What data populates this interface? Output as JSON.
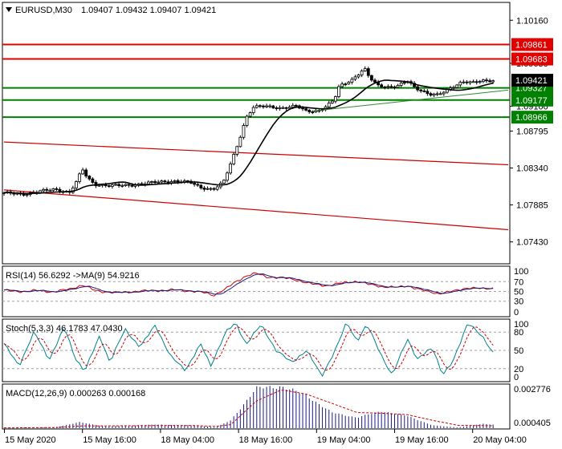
{
  "chart_data": {
    "type": "candlestick",
    "symbol_label": "EURUSD,M30",
    "ohlc_text": "1.09407 1.09432 1.09407 1.09421",
    "price_ticks": [
      "1.10160",
      "1.09630",
      "1.09100",
      "1.08795",
      "1.08340",
      "1.07885",
      "1.07430"
    ],
    "ylim": [
      1.0717,
      1.1037
    ],
    "current_price": "1.09421",
    "x_labels": [
      "15 May 2020",
      "15 May 16:00",
      "18 May 04:00",
      "18 May 16:00",
      "19 May 04:00",
      "19 May 16:00",
      "20 May 04:00"
    ],
    "levels": [
      {
        "label": "1.09861",
        "value": 1.09861,
        "color": "#e00000"
      },
      {
        "label": "1.09683",
        "value": 1.09683,
        "color": "#e00000"
      },
      {
        "label": "1.09327",
        "value": 1.09327,
        "color": "#008000"
      },
      {
        "label": "1.09177",
        "value": 1.09177,
        "color": "#008000"
      },
      {
        "label": "1.08966",
        "value": 1.08966,
        "color": "#008000"
      }
    ],
    "channel": {
      "color": "#cc0000",
      "upper": [
        [
          0,
          1.0866
        ],
        [
          1,
          1.0838
        ]
      ],
      "lower": [
        [
          0,
          1.0807
        ],
        [
          1,
          1.0758
        ]
      ]
    },
    "trend_line": {
      "color": "#2e8b2e",
      "points": [
        [
          0.61,
          1.0904
        ],
        [
          1,
          1.093
        ]
      ]
    },
    "ma_color": "#000000",
    "keypoints": [
      [
        0,
        1.0803
      ],
      [
        0.04,
        1.0802
      ],
      [
        0.07,
        1.0805
      ],
      [
        0.1,
        1.0808
      ],
      [
        0.13,
        1.0804
      ],
      [
        0.145,
        1.0818
      ],
      [
        0.155,
        1.0833
      ],
      [
        0.165,
        1.0822
      ],
      [
        0.18,
        1.0814
      ],
      [
        0.21,
        1.0812
      ],
      [
        0.25,
        1.0813
      ],
      [
        0.28,
        1.0815
      ],
      [
        0.31,
        1.0817
      ],
      [
        0.34,
        1.0818
      ],
      [
        0.37,
        1.0816
      ],
      [
        0.39,
        1.081
      ],
      [
        0.415,
        1.0808
      ],
      [
        0.435,
        1.0816
      ],
      [
        0.45,
        1.084
      ],
      [
        0.465,
        1.0866
      ],
      [
        0.48,
        1.0896
      ],
      [
        0.495,
        1.0909
      ],
      [
        0.52,
        1.091
      ],
      [
        0.55,
        1.0908
      ],
      [
        0.58,
        1.091
      ],
      [
        0.6,
        1.0904
      ],
      [
        0.625,
        1.0905
      ],
      [
        0.64,
        1.091
      ],
      [
        0.655,
        1.0918
      ],
      [
        0.665,
        1.0935
      ],
      [
        0.675,
        1.0938
      ],
      [
        0.69,
        1.0943
      ],
      [
        0.705,
        1.0951
      ],
      [
        0.715,
        1.0956
      ],
      [
        0.725,
        1.0945
      ],
      [
        0.74,
        1.0936
      ],
      [
        0.76,
        1.0934
      ],
      [
        0.78,
        1.0935
      ],
      [
        0.8,
        1.0941
      ],
      [
        0.815,
        1.0933
      ],
      [
        0.83,
        1.0929
      ],
      [
        0.845,
        1.0925
      ],
      [
        0.86,
        1.0924
      ],
      [
        0.875,
        1.0928
      ],
      [
        0.89,
        1.0934
      ],
      [
        0.91,
        1.0941
      ],
      [
        0.93,
        1.0939
      ],
      [
        0.95,
        1.0941
      ],
      [
        0.97,
        1.0942
      ]
    ],
    "rsi": {
      "label": "RSI(14) 56.6292  ->MA(9) 54.9216",
      "ticks": [
        "100",
        "70",
        "50",
        "30",
        "0"
      ],
      "ylim": [
        0,
        100
      ],
      "levels": [
        70,
        50,
        30
      ],
      "series_colors": {
        "main": "#cc0000",
        "signal": "#1a1a80"
      },
      "keypoints": [
        [
          0,
          52
        ],
        [
          0.04,
          50
        ],
        [
          0.07,
          52
        ],
        [
          0.1,
          49
        ],
        [
          0.13,
          55
        ],
        [
          0.155,
          63
        ],
        [
          0.18,
          52
        ],
        [
          0.22,
          47
        ],
        [
          0.26,
          50
        ],
        [
          0.3,
          52
        ],
        [
          0.34,
          53
        ],
        [
          0.37,
          51
        ],
        [
          0.4,
          47
        ],
        [
          0.415,
          42
        ],
        [
          0.44,
          55
        ],
        [
          0.46,
          70
        ],
        [
          0.48,
          82
        ],
        [
          0.5,
          87
        ],
        [
          0.52,
          80
        ],
        [
          0.55,
          78
        ],
        [
          0.58,
          74
        ],
        [
          0.61,
          65
        ],
        [
          0.64,
          62
        ],
        [
          0.67,
          67
        ],
        [
          0.7,
          71
        ],
        [
          0.72,
          65
        ],
        [
          0.75,
          60
        ],
        [
          0.78,
          58
        ],
        [
          0.8,
          62
        ],
        [
          0.83,
          52
        ],
        [
          0.86,
          46
        ],
        [
          0.89,
          50
        ],
        [
          0.92,
          58
        ],
        [
          0.95,
          55
        ],
        [
          0.97,
          57
        ]
      ]
    },
    "stoch": {
      "label": "Stoch(5,3,3) 46.1783 47.0430",
      "ticks": [
        "100",
        "80",
        "50",
        "20",
        "0"
      ],
      "ylim": [
        0,
        100
      ],
      "levels": [
        80,
        50,
        20
      ],
      "series_colors": {
        "main": "#00808c",
        "signal": "#cc0000"
      },
      "keypoints": [
        [
          0,
          60
        ],
        [
          0.03,
          25
        ],
        [
          0.06,
          80
        ],
        [
          0.09,
          35
        ],
        [
          0.12,
          88
        ],
        [
          0.14,
          40
        ],
        [
          0.16,
          15
        ],
        [
          0.19,
          75
        ],
        [
          0.21,
          30
        ],
        [
          0.24,
          85
        ],
        [
          0.27,
          55
        ],
        [
          0.3,
          92
        ],
        [
          0.33,
          40
        ],
        [
          0.36,
          18
        ],
        [
          0.39,
          60
        ],
        [
          0.41,
          25
        ],
        [
          0.44,
          80
        ],
        [
          0.46,
          95
        ],
        [
          0.48,
          60
        ],
        [
          0.51,
          92
        ],
        [
          0.54,
          50
        ],
        [
          0.57,
          30
        ],
        [
          0.6,
          50
        ],
        [
          0.63,
          8
        ],
        [
          0.66,
          55
        ],
        [
          0.68,
          97
        ],
        [
          0.7,
          65
        ],
        [
          0.72,
          92
        ],
        [
          0.75,
          40
        ],
        [
          0.77,
          8
        ],
        [
          0.8,
          70
        ],
        [
          0.82,
          35
        ],
        [
          0.85,
          55
        ],
        [
          0.87,
          10
        ],
        [
          0.89,
          30
        ],
        [
          0.92,
          97
        ],
        [
          0.95,
          70
        ],
        [
          0.97,
          47
        ]
      ]
    },
    "macd": {
      "label": "MACD(12,26,9) 0.000263 0.000168",
      "ticks": [
        "0.002776",
        "0.000405"
      ],
      "ylim": [
        0,
        0.00305
      ],
      "series_colors": {
        "histogram": "#1a1a80",
        "signal": "#cc0000"
      },
      "keypoints": [
        [
          0,
          2e-05
        ],
        [
          0.1,
          5e-05
        ],
        [
          0.15,
          0.00042
        ],
        [
          0.2,
          0.00012
        ],
        [
          0.3,
          0.00025
        ],
        [
          0.38,
          0.0002
        ],
        [
          0.42,
          5e-05
        ],
        [
          0.45,
          0.00055
        ],
        [
          0.5,
          0.0028
        ],
        [
          0.55,
          0.00295
        ],
        [
          0.6,
          0.0023
        ],
        [
          0.65,
          0.0011
        ],
        [
          0.7,
          0.00075
        ],
        [
          0.75,
          0.0012
        ],
        [
          0.8,
          0.00085
        ],
        [
          0.85,
          0.0002
        ],
        [
          0.9,
          5e-05
        ],
        [
          0.95,
          0.0003
        ],
        [
          0.97,
          0.00026
        ]
      ],
      "signal_keypoints": [
        [
          0,
          2e-05
        ],
        [
          0.1,
          4e-05
        ],
        [
          0.15,
          0.00015
        ],
        [
          0.2,
          0.00016
        ],
        [
          0.3,
          0.00018
        ],
        [
          0.38,
          0.00018
        ],
        [
          0.42,
          0.00012
        ],
        [
          0.45,
          0.00025
        ],
        [
          0.5,
          0.0019
        ],
        [
          0.55,
          0.0027
        ],
        [
          0.6,
          0.0024
        ],
        [
          0.65,
          0.00175
        ],
        [
          0.7,
          0.0011
        ],
        [
          0.75,
          0.00105
        ],
        [
          0.8,
          0.00095
        ],
        [
          0.85,
          0.00055
        ],
        [
          0.9,
          0.0002
        ],
        [
          0.95,
          0.00018
        ],
        [
          0.97,
          0.00017
        ]
      ]
    }
  }
}
